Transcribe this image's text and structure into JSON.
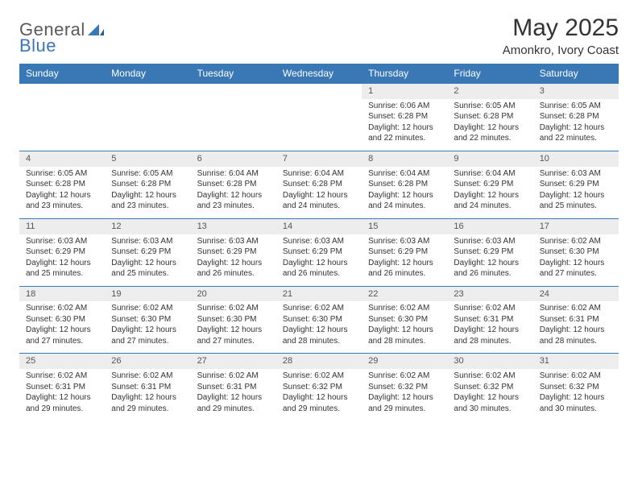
{
  "brand": {
    "general": "General",
    "blue": "Blue"
  },
  "title": "May 2025",
  "location": "Amonkro, Ivory Coast",
  "colors": {
    "header_bg": "#3a78b5",
    "header_text": "#ffffff",
    "daynum_bg": "#ededed",
    "page_bg": "#ffffff",
    "text": "#333333",
    "logo_gray": "#5a5a5a",
    "logo_blue": "#3a78b5"
  },
  "weekdays": [
    "Sunday",
    "Monday",
    "Tuesday",
    "Wednesday",
    "Thursday",
    "Friday",
    "Saturday"
  ],
  "weeks": [
    [
      {
        "empty": true
      },
      {
        "empty": true
      },
      {
        "empty": true
      },
      {
        "empty": true
      },
      {
        "day": "1",
        "sunrise": "Sunrise: 6:06 AM",
        "sunset": "Sunset: 6:28 PM",
        "daylight1": "Daylight: 12 hours",
        "daylight2": "and 22 minutes."
      },
      {
        "day": "2",
        "sunrise": "Sunrise: 6:05 AM",
        "sunset": "Sunset: 6:28 PM",
        "daylight1": "Daylight: 12 hours",
        "daylight2": "and 22 minutes."
      },
      {
        "day": "3",
        "sunrise": "Sunrise: 6:05 AM",
        "sunset": "Sunset: 6:28 PM",
        "daylight1": "Daylight: 12 hours",
        "daylight2": "and 22 minutes."
      }
    ],
    [
      {
        "day": "4",
        "sunrise": "Sunrise: 6:05 AM",
        "sunset": "Sunset: 6:28 PM",
        "daylight1": "Daylight: 12 hours",
        "daylight2": "and 23 minutes."
      },
      {
        "day": "5",
        "sunrise": "Sunrise: 6:05 AM",
        "sunset": "Sunset: 6:28 PM",
        "daylight1": "Daylight: 12 hours",
        "daylight2": "and 23 minutes."
      },
      {
        "day": "6",
        "sunrise": "Sunrise: 6:04 AM",
        "sunset": "Sunset: 6:28 PM",
        "daylight1": "Daylight: 12 hours",
        "daylight2": "and 23 minutes."
      },
      {
        "day": "7",
        "sunrise": "Sunrise: 6:04 AM",
        "sunset": "Sunset: 6:28 PM",
        "daylight1": "Daylight: 12 hours",
        "daylight2": "and 24 minutes."
      },
      {
        "day": "8",
        "sunrise": "Sunrise: 6:04 AM",
        "sunset": "Sunset: 6:28 PM",
        "daylight1": "Daylight: 12 hours",
        "daylight2": "and 24 minutes."
      },
      {
        "day": "9",
        "sunrise": "Sunrise: 6:04 AM",
        "sunset": "Sunset: 6:29 PM",
        "daylight1": "Daylight: 12 hours",
        "daylight2": "and 24 minutes."
      },
      {
        "day": "10",
        "sunrise": "Sunrise: 6:03 AM",
        "sunset": "Sunset: 6:29 PM",
        "daylight1": "Daylight: 12 hours",
        "daylight2": "and 25 minutes."
      }
    ],
    [
      {
        "day": "11",
        "sunrise": "Sunrise: 6:03 AM",
        "sunset": "Sunset: 6:29 PM",
        "daylight1": "Daylight: 12 hours",
        "daylight2": "and 25 minutes."
      },
      {
        "day": "12",
        "sunrise": "Sunrise: 6:03 AM",
        "sunset": "Sunset: 6:29 PM",
        "daylight1": "Daylight: 12 hours",
        "daylight2": "and 25 minutes."
      },
      {
        "day": "13",
        "sunrise": "Sunrise: 6:03 AM",
        "sunset": "Sunset: 6:29 PM",
        "daylight1": "Daylight: 12 hours",
        "daylight2": "and 26 minutes."
      },
      {
        "day": "14",
        "sunrise": "Sunrise: 6:03 AM",
        "sunset": "Sunset: 6:29 PM",
        "daylight1": "Daylight: 12 hours",
        "daylight2": "and 26 minutes."
      },
      {
        "day": "15",
        "sunrise": "Sunrise: 6:03 AM",
        "sunset": "Sunset: 6:29 PM",
        "daylight1": "Daylight: 12 hours",
        "daylight2": "and 26 minutes."
      },
      {
        "day": "16",
        "sunrise": "Sunrise: 6:03 AM",
        "sunset": "Sunset: 6:29 PM",
        "daylight1": "Daylight: 12 hours",
        "daylight2": "and 26 minutes."
      },
      {
        "day": "17",
        "sunrise": "Sunrise: 6:02 AM",
        "sunset": "Sunset: 6:30 PM",
        "daylight1": "Daylight: 12 hours",
        "daylight2": "and 27 minutes."
      }
    ],
    [
      {
        "day": "18",
        "sunrise": "Sunrise: 6:02 AM",
        "sunset": "Sunset: 6:30 PM",
        "daylight1": "Daylight: 12 hours",
        "daylight2": "and 27 minutes."
      },
      {
        "day": "19",
        "sunrise": "Sunrise: 6:02 AM",
        "sunset": "Sunset: 6:30 PM",
        "daylight1": "Daylight: 12 hours",
        "daylight2": "and 27 minutes."
      },
      {
        "day": "20",
        "sunrise": "Sunrise: 6:02 AM",
        "sunset": "Sunset: 6:30 PM",
        "daylight1": "Daylight: 12 hours",
        "daylight2": "and 27 minutes."
      },
      {
        "day": "21",
        "sunrise": "Sunrise: 6:02 AM",
        "sunset": "Sunset: 6:30 PM",
        "daylight1": "Daylight: 12 hours",
        "daylight2": "and 28 minutes."
      },
      {
        "day": "22",
        "sunrise": "Sunrise: 6:02 AM",
        "sunset": "Sunset: 6:30 PM",
        "daylight1": "Daylight: 12 hours",
        "daylight2": "and 28 minutes."
      },
      {
        "day": "23",
        "sunrise": "Sunrise: 6:02 AM",
        "sunset": "Sunset: 6:31 PM",
        "daylight1": "Daylight: 12 hours",
        "daylight2": "and 28 minutes."
      },
      {
        "day": "24",
        "sunrise": "Sunrise: 6:02 AM",
        "sunset": "Sunset: 6:31 PM",
        "daylight1": "Daylight: 12 hours",
        "daylight2": "and 28 minutes."
      }
    ],
    [
      {
        "day": "25",
        "sunrise": "Sunrise: 6:02 AM",
        "sunset": "Sunset: 6:31 PM",
        "daylight1": "Daylight: 12 hours",
        "daylight2": "and 29 minutes."
      },
      {
        "day": "26",
        "sunrise": "Sunrise: 6:02 AM",
        "sunset": "Sunset: 6:31 PM",
        "daylight1": "Daylight: 12 hours",
        "daylight2": "and 29 minutes."
      },
      {
        "day": "27",
        "sunrise": "Sunrise: 6:02 AM",
        "sunset": "Sunset: 6:31 PM",
        "daylight1": "Daylight: 12 hours",
        "daylight2": "and 29 minutes."
      },
      {
        "day": "28",
        "sunrise": "Sunrise: 6:02 AM",
        "sunset": "Sunset: 6:32 PM",
        "daylight1": "Daylight: 12 hours",
        "daylight2": "and 29 minutes."
      },
      {
        "day": "29",
        "sunrise": "Sunrise: 6:02 AM",
        "sunset": "Sunset: 6:32 PM",
        "daylight1": "Daylight: 12 hours",
        "daylight2": "and 29 minutes."
      },
      {
        "day": "30",
        "sunrise": "Sunrise: 6:02 AM",
        "sunset": "Sunset: 6:32 PM",
        "daylight1": "Daylight: 12 hours",
        "daylight2": "and 30 minutes."
      },
      {
        "day": "31",
        "sunrise": "Sunrise: 6:02 AM",
        "sunset": "Sunset: 6:32 PM",
        "daylight1": "Daylight: 12 hours",
        "daylight2": "and 30 minutes."
      }
    ]
  ]
}
